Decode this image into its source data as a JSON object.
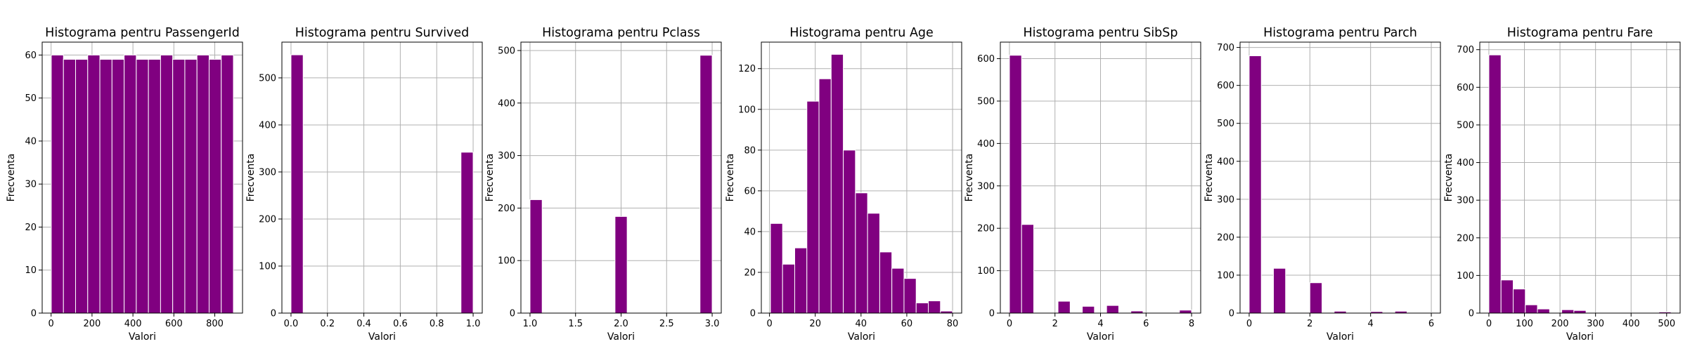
{
  "chart_data": [
    {
      "type": "bar",
      "title": "Histograma pentru PassengerId",
      "xlabel": "Valori",
      "ylabel": "Frecventa",
      "color": "#800080",
      "grid": true,
      "xlim": [
        -43.6,
        935.6
      ],
      "ylim": [
        0,
        63
      ],
      "xticks": [
        0,
        200,
        400,
        600,
        800
      ],
      "yticks": [
        0,
        10,
        20,
        30,
        40,
        50,
        60
      ],
      "bin_edges": [
        1,
        60.33,
        119.67,
        179,
        238.33,
        297.67,
        357,
        416.33,
        475.67,
        535,
        594.33,
        653.67,
        713,
        772.33,
        831.67,
        891
      ],
      "values": [
        60,
        59,
        59,
        60,
        59,
        59,
        60,
        59,
        59,
        60,
        59,
        59,
        60,
        59,
        60
      ]
    },
    {
      "type": "bar",
      "title": "Histograma pentru Survived",
      "xlabel": "Valori",
      "ylabel": "Frecventa",
      "color": "#800080",
      "grid": true,
      "xlim": [
        -0.05,
        1.05
      ],
      "ylim": [
        0,
        576
      ],
      "xticks": [
        0.0,
        0.2,
        0.4,
        0.6,
        0.8,
        1.0
      ],
      "yticks": [
        0,
        100,
        200,
        300,
        400,
        500
      ],
      "bin_edges": [
        0,
        0.0667,
        0.1333,
        0.2,
        0.2667,
        0.3333,
        0.4,
        0.4667,
        0.5333,
        0.6,
        0.6667,
        0.7333,
        0.8,
        0.8667,
        0.9333,
        1.0
      ],
      "values": [
        549,
        0,
        0,
        0,
        0,
        0,
        0,
        0,
        0,
        0,
        0,
        0,
        0,
        0,
        342
      ]
    },
    {
      "type": "bar",
      "title": "Histograma pentru Pclass",
      "xlabel": "Valori",
      "ylabel": "Frecventa",
      "color": "#800080",
      "grid": true,
      "xlim": [
        0.9,
        3.1
      ],
      "ylim": [
        0,
        516
      ],
      "xticks": [
        1.0,
        1.5,
        2.0,
        2.5,
        3.0
      ],
      "yticks": [
        0,
        100,
        200,
        300,
        400,
        500
      ],
      "bin_edges": [
        1,
        1.1333,
        1.2667,
        1.4,
        1.5333,
        1.6667,
        1.8,
        1.9333,
        2.0667,
        2.2,
        2.3333,
        2.4667,
        2.6,
        2.7333,
        2.8667,
        3.0
      ],
      "values": [
        216,
        0,
        0,
        0,
        0,
        0,
        0,
        184,
        0,
        0,
        0,
        0,
        0,
        0,
        491
      ]
    },
    {
      "type": "bar",
      "title": "Histograma pentru Age",
      "xlabel": "Valori",
      "ylabel": "Frecventa",
      "color": "#800080",
      "grid": true,
      "xlim": [
        -3.56,
        83.98
      ],
      "ylim": [
        0,
        133
      ],
      "xticks": [
        0,
        20,
        40,
        60,
        80
      ],
      "yticks": [
        0,
        20,
        40,
        60,
        80,
        100,
        120
      ],
      "bin_edges": [
        0.42,
        5.72,
        11.03,
        16.34,
        21.64,
        26.95,
        32.25,
        37.56,
        42.86,
        48.17,
        53.47,
        58.78,
        64.09,
        69.39,
        74.7,
        80.0
      ],
      "values": [
        44,
        24,
        32,
        104,
        115,
        127,
        80,
        59,
        49,
        30,
        22,
        17,
        5,
        6,
        1
      ]
    },
    {
      "type": "bar",
      "title": "Histograma pentru SibSp",
      "xlabel": "Valori",
      "ylabel": "Frecventa",
      "color": "#800080",
      "grid": true,
      "xlim": [
        -0.4,
        8.4
      ],
      "ylim": [
        0,
        639
      ],
      "xticks": [
        0,
        2,
        4,
        6,
        8
      ],
      "yticks": [
        0,
        100,
        200,
        300,
        400,
        500,
        600
      ],
      "bin_edges": [
        0,
        0.5333,
        1.0667,
        1.6,
        2.1333,
        2.6667,
        3.2,
        3.7333,
        4.2667,
        4.8,
        5.3333,
        5.8667,
        6.4,
        6.9333,
        7.4667,
        8.0
      ],
      "values": [
        608,
        209,
        0,
        0,
        28,
        0,
        16,
        0,
        18,
        0,
        5,
        0,
        0,
        0,
        7
      ]
    },
    {
      "type": "bar",
      "title": "Histograma pentru Parch",
      "xlabel": "Valori",
      "ylabel": "Frecventa",
      "color": "#800080",
      "grid": true,
      "xlim": [
        -0.3,
        6.3
      ],
      "ylim": [
        0,
        714
      ],
      "xticks": [
        0,
        2,
        4,
        6
      ],
      "yticks": [
        0,
        100,
        200,
        300,
        400,
        500,
        600,
        700
      ],
      "bin_edges": [
        0,
        0.4,
        0.8,
        1.2,
        1.6,
        2.0,
        2.4,
        2.8,
        3.2,
        3.6,
        4.0,
        4.4,
        4.8,
        5.2,
        5.6,
        6.0
      ],
      "values": [
        678,
        0,
        118,
        0,
        0,
        80,
        0,
        5,
        0,
        0,
        4,
        0,
        5,
        0,
        1
      ]
    },
    {
      "type": "bar",
      "title": "Histograma pentru Fare",
      "xlabel": "Valori",
      "ylabel": "Frecventa",
      "color": "#800080",
      "grid": true,
      "xlim": [
        -25.62,
        537.95
      ],
      "ylim": [
        0,
        720
      ],
      "xticks": [
        0,
        100,
        200,
        300,
        400,
        500
      ],
      "yticks": [
        0,
        100,
        200,
        300,
        400,
        500,
        600,
        700
      ],
      "bin_edges": [
        0,
        34.16,
        68.31,
        102.47,
        136.62,
        170.78,
        204.93,
        239.09,
        273.24,
        307.4,
        341.55,
        375.71,
        409.86,
        444.02,
        478.17,
        512.33
      ],
      "values": [
        686,
        88,
        64,
        22,
        11,
        0,
        9,
        7,
        0,
        0,
        0,
        0,
        0,
        0,
        3
      ]
    }
  ]
}
